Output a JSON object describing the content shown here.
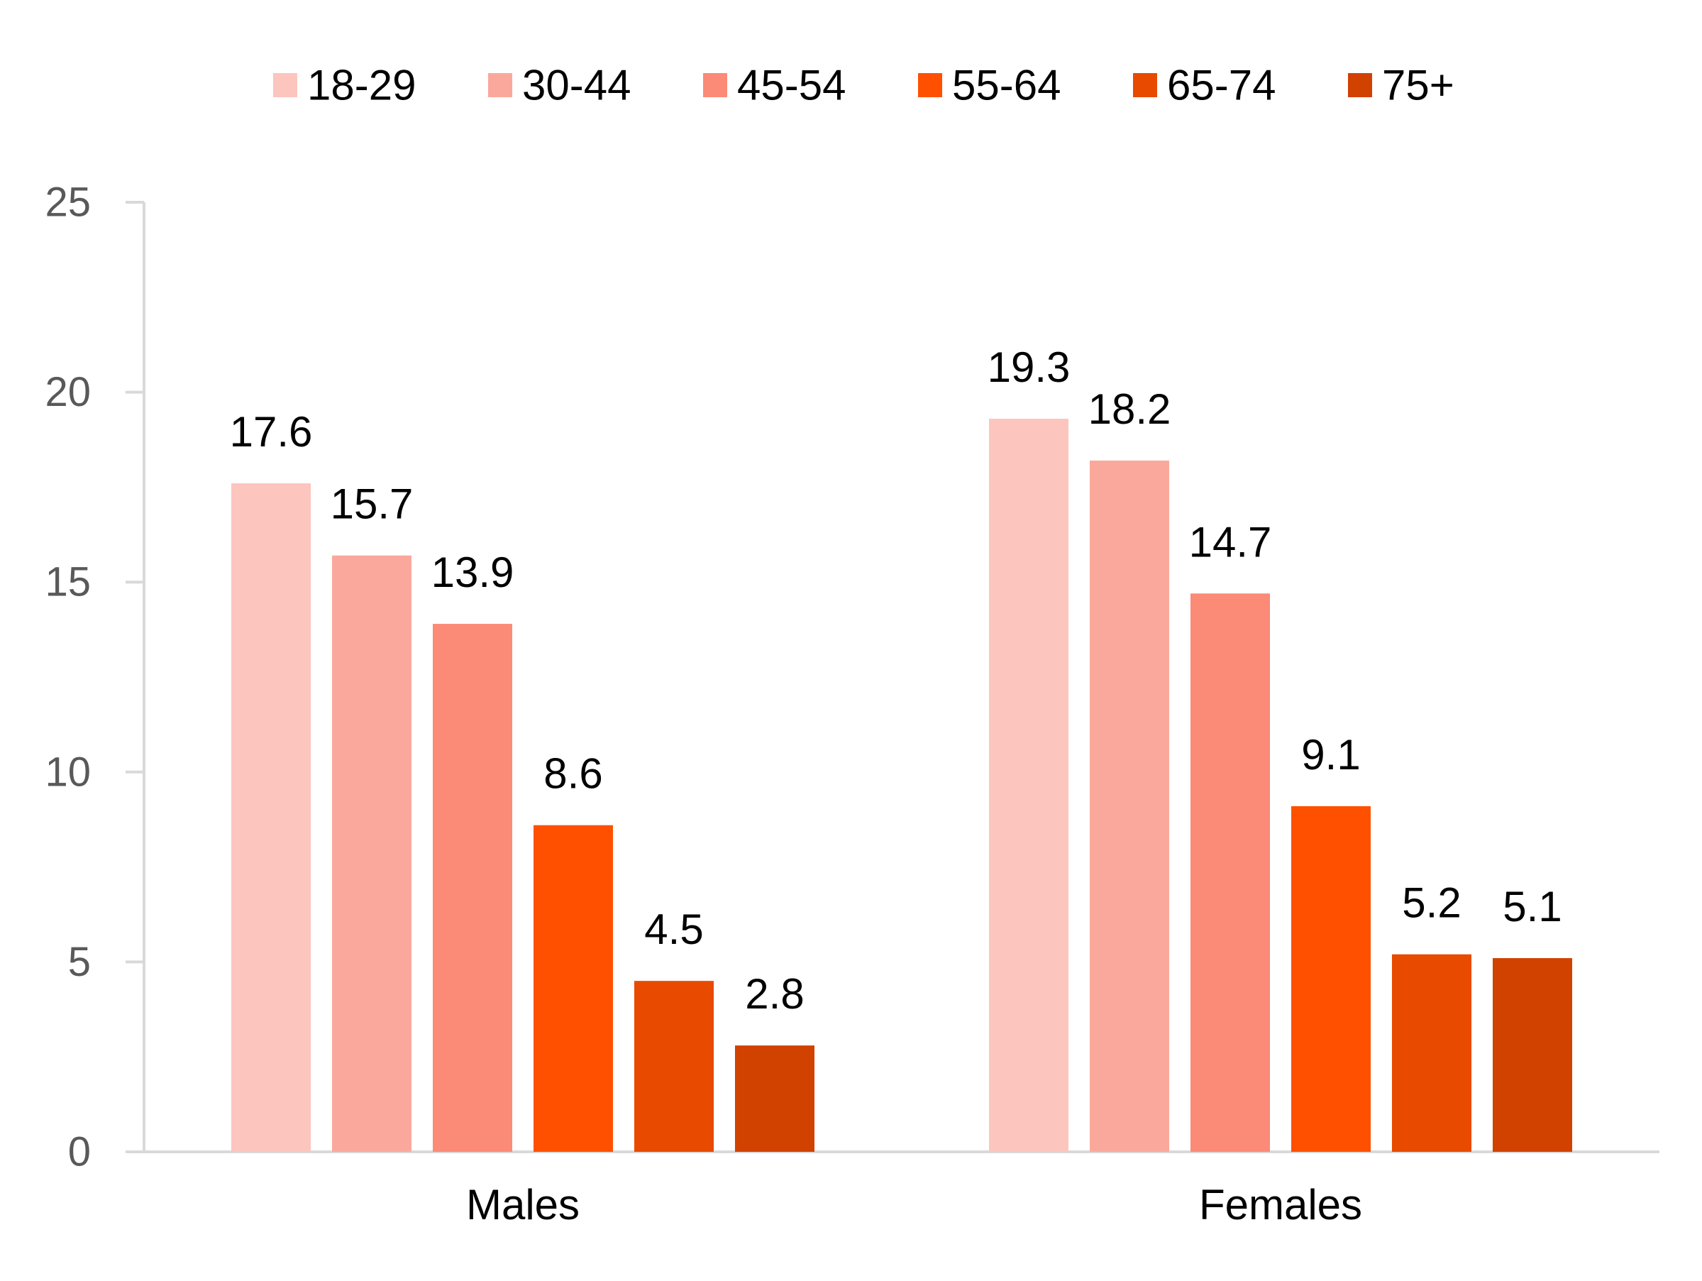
{
  "chart_data": {
    "type": "bar",
    "categories": [
      "Males",
      "Females"
    ],
    "series": [
      {
        "name": "18-29",
        "color": "#FCC5BE",
        "values": [
          17.6,
          19.3
        ]
      },
      {
        "name": "30-44",
        "color": "#FBA89C",
        "values": [
          15.7,
          18.2
        ]
      },
      {
        "name": "45-54",
        "color": "#FB8A77",
        "values": [
          13.9,
          14.7
        ]
      },
      {
        "name": "55-64",
        "color": "#FF5000",
        "values": [
          8.6,
          9.1
        ]
      },
      {
        "name": "65-74",
        "color": "#E84A00",
        "values": [
          4.5,
          5.2
        ]
      },
      {
        "name": "75+",
        "color": "#D14100",
        "values": [
          2.8,
          5.1
        ]
      }
    ],
    "data_labels": [
      [
        "17.6",
        "15.7",
        "13.9",
        "8.6",
        "4.5",
        "2.8"
      ],
      [
        "19.3",
        "18.2",
        "14.7",
        "9.1",
        "5.2",
        "5.1"
      ]
    ],
    "yticks": [
      "0",
      "5",
      "10",
      "15",
      "20",
      "25"
    ],
    "ylim": [
      0,
      25
    ],
    "title": "",
    "xlabel": "",
    "ylabel": "",
    "legend_position": "top",
    "grid": false
  }
}
